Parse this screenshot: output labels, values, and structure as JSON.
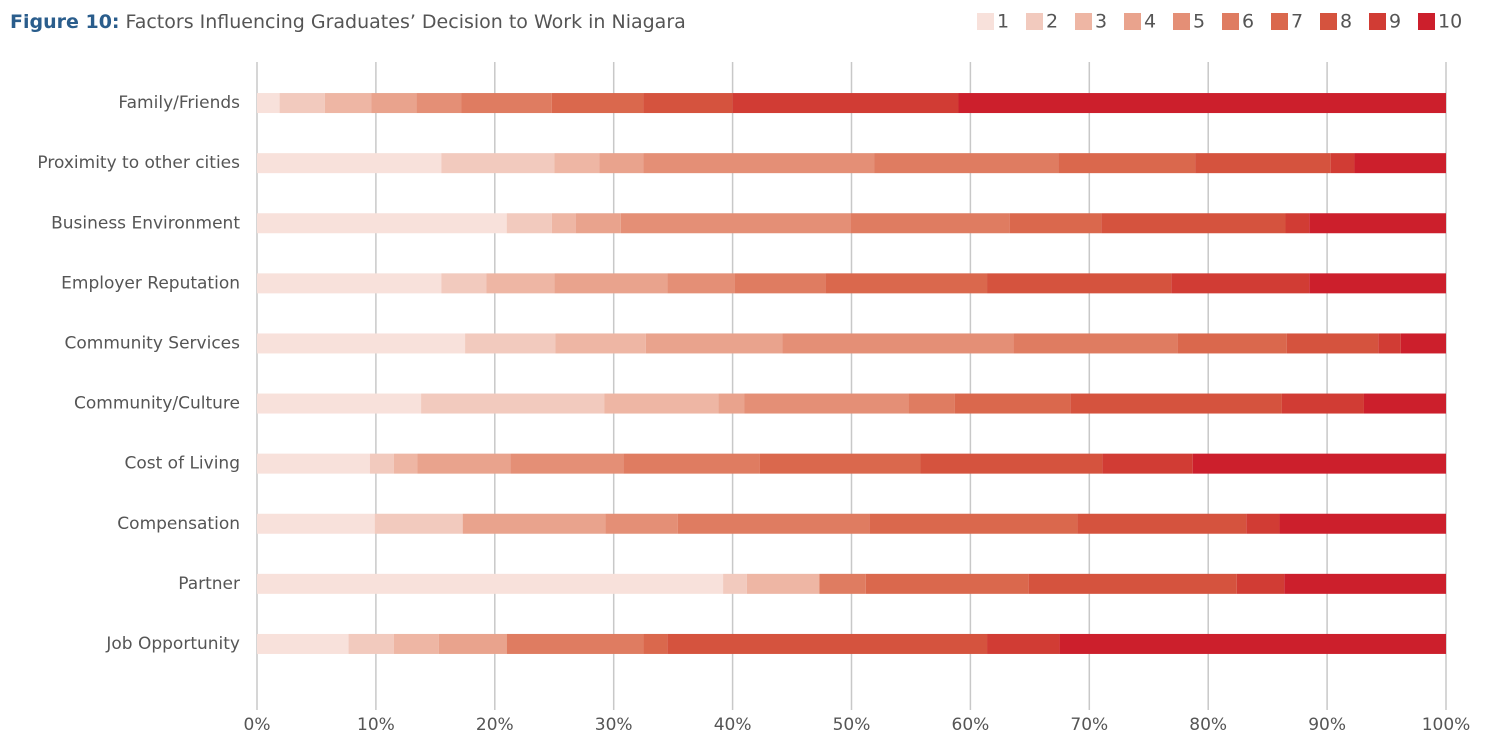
{
  "chart_data": {
    "type": "stacked-bar-horizontal",
    "title_label": "Figure 10:",
    "title": "Factors Influencing Graduates’ Decision to Work in Niagara",
    "categories": [
      "Family/Friends",
      "Proximity to other cities",
      "Business Environment",
      "Employer Reputation",
      "Community Services",
      "Community/Culture",
      "Cost of Living",
      "Compensation",
      "Partner",
      "Job Opportunity"
    ],
    "series": [
      {
        "name": "1",
        "color": "#f8e1db",
        "values": [
          1.9,
          15.5,
          21.0,
          15.5,
          17.5,
          13.8,
          9.5,
          9.9,
          39.2,
          7.7
        ]
      },
      {
        "name": "2",
        "color": "#f2cabe",
        "values": [
          3.8,
          9.5,
          3.8,
          3.8,
          7.6,
          15.4,
          2.0,
          7.4,
          2.0,
          3.8
        ]
      },
      {
        "name": "3",
        "color": "#eeb6a4",
        "values": [
          3.9,
          3.8,
          2.0,
          5.7,
          7.6,
          9.6,
          2.0,
          0,
          6.1,
          3.8
        ]
      },
      {
        "name": "4",
        "color": "#e9a38d",
        "values": [
          3.8,
          3.7,
          3.8,
          9.5,
          11.5,
          2.2,
          7.8,
          12.0,
          0,
          5.7
        ]
      },
      {
        "name": "5",
        "color": "#e48f76",
        "values": [
          3.8,
          19.4,
          19.3,
          5.7,
          19.4,
          13.8,
          9.5,
          6.1,
          0,
          0
        ]
      },
      {
        "name": "6",
        "color": "#df7c61",
        "values": [
          7.6,
          15.5,
          13.4,
          7.6,
          13.8,
          3.9,
          11.5,
          16.1,
          3.9,
          11.5
        ]
      },
      {
        "name": "7",
        "color": "#da684d",
        "values": [
          7.7,
          11.5,
          7.7,
          13.6,
          9.2,
          9.7,
          13.5,
          17.5,
          13.7,
          2.0
        ]
      },
      {
        "name": "8",
        "color": "#d5533e",
        "values": [
          7.5,
          11.4,
          15.5,
          15.5,
          7.7,
          17.8,
          15.3,
          14.2,
          17.5,
          26.9
        ]
      },
      {
        "name": "9",
        "color": "#d13c34",
        "values": [
          19.0,
          2.0,
          2.0,
          11.6,
          1.9,
          6.9,
          7.6,
          2.8,
          4.0,
          6.1
        ]
      },
      {
        "name": "10",
        "color": "#cc1f2c",
        "values": [
          41.0,
          7.7,
          11.5,
          11.5,
          3.8,
          6.9,
          21.3,
          14.0,
          13.6,
          32.5
        ]
      }
    ],
    "xlim": [
      0,
      100
    ],
    "xticks": [
      {
        "value": 0,
        "label": "0%"
      },
      {
        "value": 10,
        "label": "10%"
      },
      {
        "value": 20,
        "label": "20%"
      },
      {
        "value": 30,
        "label": "30%"
      },
      {
        "value": 40,
        "label": "40%"
      },
      {
        "value": 50,
        "label": "50%"
      },
      {
        "value": 60,
        "label": "60%"
      },
      {
        "value": 70,
        "label": "70%"
      },
      {
        "value": 80,
        "label": "80%"
      },
      {
        "value": 90,
        "label": "90%"
      },
      {
        "value": 100,
        "label": "100%"
      }
    ],
    "grid": true,
    "legend": "top-right"
  }
}
